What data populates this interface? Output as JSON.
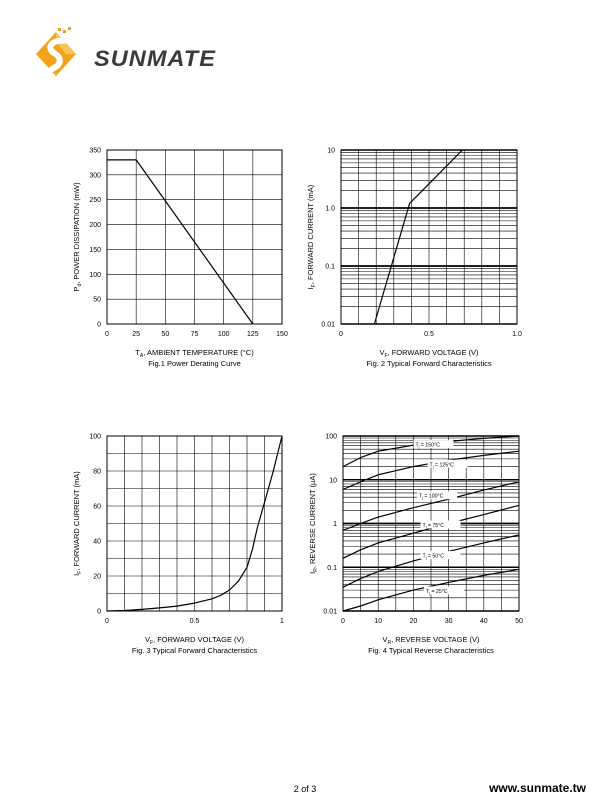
{
  "brand": {
    "name": "SUNMATE",
    "colors": {
      "orange": "#f3a21b",
      "dark": "#3a3a3a"
    }
  },
  "footer": {
    "page": "2 of 3",
    "url": "www.sunmate.tw"
  },
  "chart_data": [
    {
      "id": "fig1",
      "type": "line",
      "caption": "Fig.1  Power Derating Curve",
      "xlabel_main": "T",
      "xlabel_sub": "A",
      "xlabel_rest": ", AMBIENT TEMPERATURE (°C)",
      "ylabel_main": "P",
      "ylabel_sub": "d",
      "ylabel_rest": ", POWER DISSIPATION (mW)",
      "xscale": "linear",
      "yscale": "linear",
      "xlim": [
        0,
        150
      ],
      "ylim": [
        0,
        350
      ],
      "xticks": [
        0,
        25,
        50,
        75,
        100,
        125,
        150
      ],
      "yticks": [
        0,
        50,
        100,
        150,
        200,
        250,
        300,
        350
      ],
      "grid": true,
      "series": [
        {
          "x": [
            0,
            25,
            125
          ],
          "y": [
            330,
            330,
            0
          ]
        }
      ],
      "labels": []
    },
    {
      "id": "fig2",
      "type": "line",
      "caption": "Fig. 2 Typical Forward Characteristics",
      "xlabel_main": "V",
      "xlabel_sub": "F",
      "xlabel_rest": ", FORWARD VOLTAGE (V)",
      "ylabel_main": "I",
      "ylabel_sub": "F",
      "ylabel_rest": ", FORWARD CURRENT (mA)",
      "xscale": "linear",
      "yscale": "log",
      "xlim": [
        0,
        1.0
      ],
      "ylim": [
        0.01,
        10
      ],
      "xticks": [
        0,
        0.5,
        1.0
      ],
      "xtick_labels": [
        "0",
        "0.5",
        "1.0"
      ],
      "yticks": [
        0.01,
        0.1,
        1.0,
        10
      ],
      "ytick_labels": [
        "0.01",
        "0.1",
        "1.0",
        "10"
      ],
      "grid": true,
      "series": [
        {
          "x": [
            0.19,
            0.39,
            0.69
          ],
          "y": [
            0.01,
            1.2,
            10
          ]
        }
      ],
      "labels": []
    },
    {
      "id": "fig3",
      "type": "line",
      "caption": "Fig. 3 Typical Forward Characteristics",
      "xlabel_main": "V",
      "xlabel_sub": "F",
      "xlabel_rest": ", FORWARD VOLTAGE (V)",
      "ylabel_main": "I",
      "ylabel_sub": "F",
      "ylabel_rest": ", FORWARD CURRENT (mA)",
      "xscale": "linear",
      "yscale": "linear",
      "xlim": [
        0,
        1
      ],
      "ylim": [
        0,
        100
      ],
      "xticks": [
        0,
        0.5,
        1
      ],
      "xtick_labels": [
        "0",
        "0.5",
        "1"
      ],
      "yticks": [
        0,
        20,
        40,
        60,
        80,
        100
      ],
      "grid": true,
      "series": [
        {
          "x": [
            0,
            0.1,
            0.2,
            0.3,
            0.4,
            0.5,
            0.6,
            0.65,
            0.7,
            0.75,
            0.8,
            0.83,
            0.86,
            0.9,
            0.95,
            1.0
          ],
          "y": [
            0,
            0.3,
            0.9,
            1.8,
            2.8,
            4.5,
            7,
            9,
            12,
            17,
            25,
            35,
            48,
            62,
            80,
            100
          ]
        }
      ],
      "labels": []
    },
    {
      "id": "fig4",
      "type": "line",
      "caption": "Fig. 4 Typical Reverse Characteristics",
      "xlabel_main": "V",
      "xlabel_sub": "R",
      "xlabel_rest": ", REVERSE VOLTAGE (V)",
      "ylabel_main": "I",
      "ylabel_sub": "R",
      "ylabel_rest": ", REVERSE CURRENT (µA)",
      "xscale": "linear",
      "yscale": "log",
      "xlim": [
        0,
        50
      ],
      "ylim": [
        0.01,
        100
      ],
      "xticks": [
        0,
        10,
        20,
        30,
        40,
        50
      ],
      "yticks": [
        0.01,
        0.1,
        1,
        10,
        100
      ],
      "ytick_labels": [
        "0.01",
        "0.1",
        "1",
        "10",
        "100"
      ],
      "grid": true,
      "series": [
        {
          "x": [
            0,
            5,
            10,
            20,
            30,
            40,
            50
          ],
          "y": [
            20,
            32,
            45,
            62,
            75,
            88,
            100
          ]
        },
        {
          "x": [
            0,
            5,
            10,
            20,
            30,
            40,
            50
          ],
          "y": [
            6,
            9,
            13,
            20,
            28,
            36,
            45
          ]
        },
        {
          "x": [
            0,
            5,
            10,
            20,
            30,
            40,
            50
          ],
          "y": [
            0.7,
            1.0,
            1.4,
            2.3,
            3.6,
            5.8,
            9
          ]
        },
        {
          "x": [
            0,
            5,
            10,
            20,
            30,
            40,
            50
          ],
          "y": [
            0.16,
            0.25,
            0.36,
            0.6,
            1.0,
            1.6,
            2.6
          ]
        },
        {
          "x": [
            0,
            5,
            10,
            20,
            30,
            40,
            50
          ],
          "y": [
            0.035,
            0.055,
            0.08,
            0.14,
            0.23,
            0.36,
            0.55
          ]
        },
        {
          "x": [
            0,
            5,
            10,
            20,
            30,
            40,
            50
          ],
          "y": [
            0.01,
            0.013,
            0.018,
            0.03,
            0.045,
            0.065,
            0.09
          ]
        }
      ],
      "labels": [
        {
          "main": "T",
          "sub": "j",
          "rest": " = 150°C",
          "x": 24,
          "y": 62
        },
        {
          "main": "T",
          "sub": "j",
          "rest": " = 125°C",
          "x": 28,
          "y": 22
        },
        {
          "main": "T",
          "sub": "j",
          "rest": " = 100°C",
          "x": 25,
          "y": 4.2
        },
        {
          "main": "T",
          "sub": "j",
          "rest": " = 75°C",
          "x": 26,
          "y": 0.9
        },
        {
          "main": "T",
          "sub": "j",
          "rest": " = 50°C",
          "x": 26,
          "y": 0.18
        },
        {
          "main": "T",
          "sub": "j",
          "rest": " = 25°C",
          "x": 27,
          "y": 0.028
        }
      ]
    }
  ]
}
